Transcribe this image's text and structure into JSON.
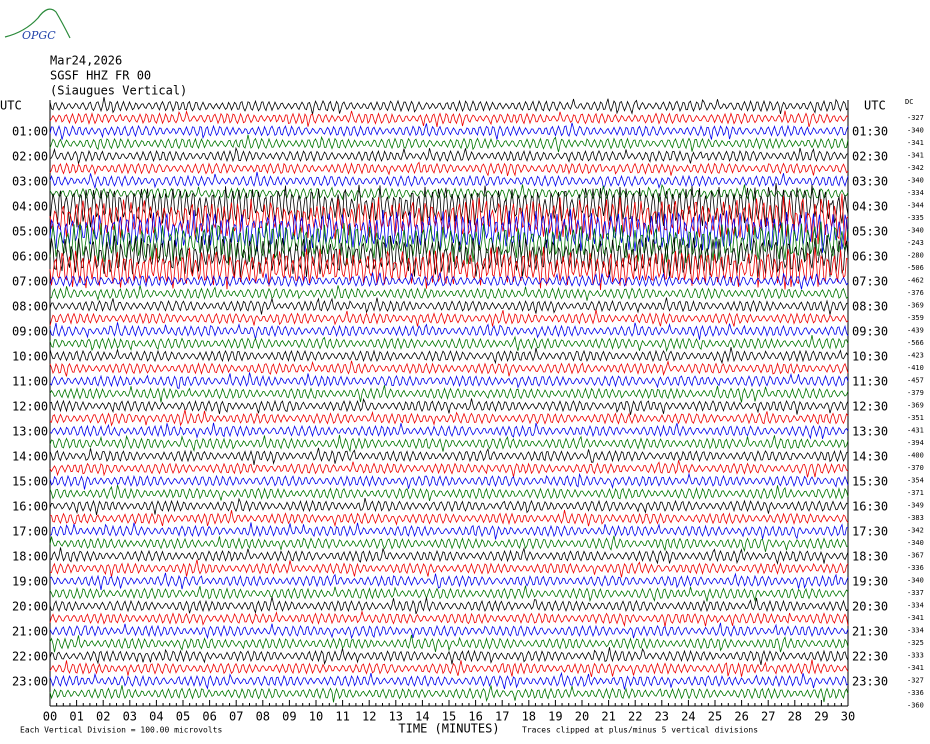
{
  "header": {
    "logo": "OPGC",
    "date": "Mar24,2026",
    "station": "SGSF HHZ FR 00",
    "location": "(Siaugues Vertical)"
  },
  "left_utc": "UTC",
  "right_utc": "UTC",
  "left_labels": [
    "01:00",
    "02:00",
    "03:00",
    "04:00",
    "05:00",
    "06:00",
    "07:00",
    "08:00",
    "09:00",
    "10:00",
    "11:00",
    "12:00",
    "13:00",
    "14:00",
    "15:00",
    "16:00",
    "17:00",
    "18:00",
    "19:00",
    "20:00",
    "21:00",
    "22:00",
    "23:00"
  ],
  "right_labels": [
    "01:30",
    "02:30",
    "03:30",
    "04:30",
    "05:30",
    "06:30",
    "07:30",
    "08:30",
    "09:30",
    "10:30",
    "11:30",
    "12:30",
    "13:30",
    "14:30",
    "15:30",
    "16:30",
    "17:30",
    "18:30",
    "19:30",
    "20:30",
    "21:30",
    "22:30",
    "23:30"
  ],
  "dc_label": "DC",
  "dc_values": [
    "-327",
    "-340",
    "-341",
    "-341",
    "-342",
    "-340",
    "-334",
    "-344",
    "-335",
    "-340",
    "-243",
    "-280",
    "-506",
    "-462",
    "-376",
    "-369",
    "-359",
    "-439",
    "-566",
    "-423",
    "-410",
    "-457",
    "-379",
    "-369",
    "-351",
    "-431",
    "-394",
    "-400",
    "-370",
    "-354",
    "-371",
    "-349",
    "-383",
    "-342",
    "-340",
    "-367",
    "-336",
    "-340",
    "-337",
    "-334",
    "-341",
    "-334",
    "-325",
    "-333",
    "-341",
    "-327",
    "-336",
    "-360"
  ],
  "time_axis": {
    "ticks": [
      "00",
      "01",
      "02",
      "03",
      "04",
      "05",
      "06",
      "07",
      "08",
      "09",
      "10",
      "11",
      "12",
      "13",
      "14",
      "15",
      "16",
      "17",
      "18",
      "19",
      "20",
      "21",
      "22",
      "23",
      "24",
      "25",
      "26",
      "27",
      "28",
      "29",
      "30"
    ],
    "title": "TIME (MINUTES)"
  },
  "footer": {
    "division": "Each Vertical Division =  100.00 microvolts",
    "clip": "Traces clipped at plus/minus 5 vertical divisions"
  }
}
